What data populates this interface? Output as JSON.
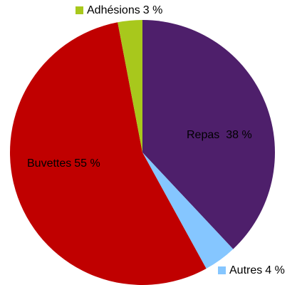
{
  "chart_data": {
    "type": "pie",
    "categories": [
      "Repas",
      "Autres",
      "Buvettes",
      "Adhésions"
    ],
    "values": [
      38,
      4,
      55,
      3
    ],
    "value_labels": [
      "38 %",
      "4 %",
      "55 %",
      "3 %"
    ],
    "colors": [
      "#4e1f6b",
      "#85c6ff",
      "#c00000",
      "#a8c81c"
    ]
  }
}
